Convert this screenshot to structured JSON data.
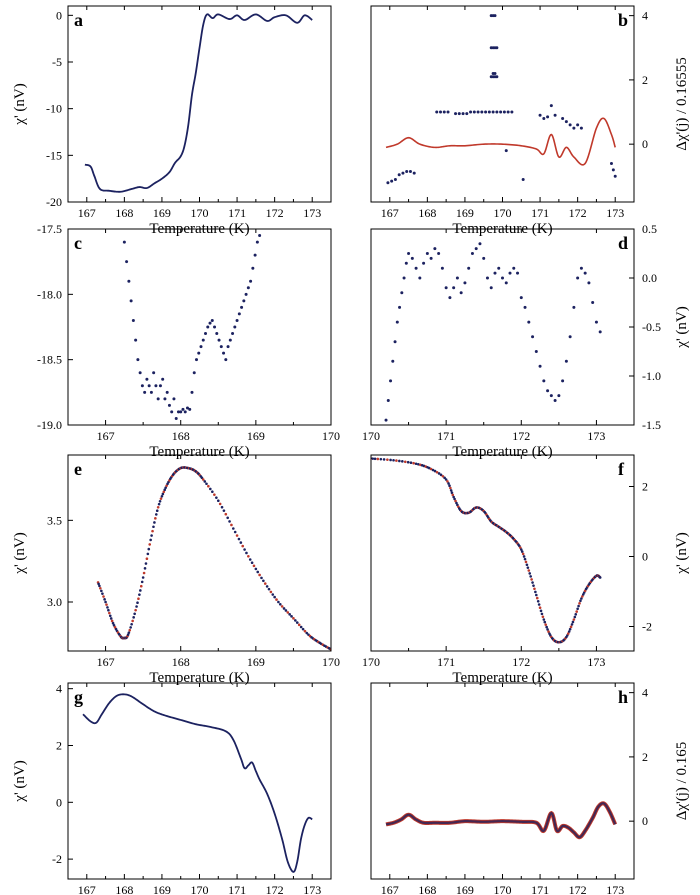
{
  "colors": {
    "navy": "#1c2260",
    "red": "#c0392b",
    "axis": "#000000"
  },
  "chart_data": [
    {
      "panel": "a",
      "type": "line",
      "xlabel": "Temperature (K)",
      "ylabel": "χ'  (nV)",
      "xlim": [
        166.5,
        173.5
      ],
      "ylim": [
        -20,
        1
      ],
      "xticks": [
        "167",
        "168",
        "169",
        "170",
        "171",
        "172",
        "173"
      ],
      "xtick_values": [
        167,
        168,
        169,
        170,
        171,
        172,
        173
      ],
      "yticks": [
        "0",
        "-5",
        "-10",
        "-15",
        "-20"
      ],
      "ytick_values": [
        0,
        -5,
        -10,
        -15,
        -20
      ],
      "y_axis_side": "left",
      "series": [
        {
          "style": "line",
          "color": "navy",
          "x": [
            166.95,
            167.1,
            167.2,
            167.35,
            167.6,
            167.9,
            168.2,
            168.4,
            168.6,
            168.8,
            169.0,
            169.2,
            169.35,
            169.5,
            169.6,
            169.7,
            169.8,
            169.9,
            170.0,
            170.1,
            170.2,
            170.35,
            170.5,
            170.8,
            171.0,
            171.2,
            171.5,
            171.8,
            172.0,
            172.3,
            172.6,
            172.8,
            173.0
          ],
          "y": [
            -16.0,
            -16.2,
            -17.2,
            -18.6,
            -18.8,
            -18.9,
            -18.6,
            -18.4,
            -18.5,
            -18.0,
            -17.5,
            -16.8,
            -15.8,
            -15.1,
            -14.0,
            -11.8,
            -8.5,
            -6.2,
            -3.5,
            -1.0,
            0.1,
            -0.3,
            0.1,
            -0.4,
            0.0,
            -0.5,
            0.1,
            -0.6,
            -0.2,
            0.0,
            -0.8,
            0.0,
            -0.5
          ]
        }
      ]
    },
    {
      "panel": "b",
      "type": "scatter",
      "xlabel": "Temperature (K)",
      "ylabel": "Δχ'(j)  / 0.16555",
      "xlim": [
        166.5,
        173.5
      ],
      "ylim": [
        -1.8,
        4.3
      ],
      "xticks": [
        "167",
        "168",
        "169",
        "170",
        "171",
        "172",
        "173"
      ],
      "xtick_values": [
        167,
        168,
        169,
        170,
        171,
        172,
        173
      ],
      "yticks": [
        "4",
        "2",
        "0"
      ],
      "ytick_values": [
        4,
        2,
        0
      ],
      "y_axis_side": "right",
      "series": [
        {
          "style": "line",
          "color": "red",
          "x": [
            166.9,
            167.2,
            167.5,
            167.8,
            168.2,
            168.6,
            169.0,
            169.5,
            170.0,
            170.5,
            170.9,
            171.1,
            171.3,
            171.5,
            171.7,
            171.9,
            172.2,
            172.5,
            172.7,
            172.9,
            173.0
          ],
          "y": [
            -0.1,
            0.0,
            0.2,
            0.0,
            -0.1,
            -0.05,
            -0.05,
            0.0,
            0.0,
            -0.05,
            -0.15,
            -0.3,
            0.3,
            -0.4,
            -0.1,
            -0.4,
            -0.6,
            0.5,
            0.8,
            0.3,
            -0.1
          ]
        },
        {
          "style": "dots",
          "color": "navy",
          "x": [
            166.95,
            167.05,
            167.15,
            167.25,
            167.35,
            167.45,
            167.55,
            167.65,
            168.25,
            168.35,
            168.45,
            168.55,
            168.75,
            168.85,
            168.95,
            169.05,
            169.15,
            169.25,
            169.35,
            169.45,
            169.55,
            169.65,
            169.75,
            169.85,
            169.95,
            170.05,
            170.15,
            170.25,
            169.7,
            169.75,
            169.8,
            169.7,
            169.75,
            169.8,
            169.85,
            169.75,
            169.8,
            169.7,
            169.75,
            169.8,
            169.85,
            171.0,
            171.1,
            171.2,
            171.3,
            171.4,
            171.6,
            171.7,
            171.8,
            171.9,
            172.0,
            172.1,
            172.9,
            172.95,
            173.0,
            170.1,
            170.55
          ],
          "y": [
            -1.2,
            -1.15,
            -1.1,
            -0.95,
            -0.9,
            -0.85,
            -0.85,
            -0.9,
            1.0,
            1.0,
            1.0,
            1.0,
            0.95,
            0.95,
            0.95,
            0.95,
            1.0,
            1.0,
            1.0,
            1.0,
            1.0,
            1.0,
            1.0,
            1.0,
            1.0,
            1.0,
            1.0,
            1.0,
            4.0,
            4.0,
            4.0,
            3.0,
            3.0,
            3.0,
            3.0,
            2.2,
            2.2,
            2.1,
            2.1,
            2.1,
            2.1,
            0.9,
            0.8,
            0.85,
            1.2,
            0.9,
            0.8,
            0.7,
            0.6,
            0.5,
            0.6,
            0.5,
            -0.6,
            -0.8,
            -1.0,
            -0.2,
            -1.1
          ]
        }
      ]
    },
    {
      "panel": "c",
      "type": "scatter",
      "xlabel": "Temperature (K)",
      "ylabel": "",
      "xlim": [
        166.5,
        170
      ],
      "ylim": [
        -19.0,
        -17.5
      ],
      "xticks": [
        "167",
        "168",
        "169",
        "170"
      ],
      "xtick_values": [
        167,
        168,
        169,
        170
      ],
      "yticks": [
        "-17.5",
        "-18.0",
        "-18.5",
        "-19.0"
      ],
      "ytick_values": [
        -17.5,
        -18.0,
        -18.5,
        -19.0
      ],
      "y_axis_side": "left",
      "series": [
        {
          "style": "dots",
          "color": "navy",
          "x": [
            167.25,
            167.28,
            167.31,
            167.34,
            167.37,
            167.4,
            167.43,
            167.46,
            167.49,
            167.52,
            167.55,
            167.58,
            167.61,
            167.64,
            167.67,
            167.7,
            167.73,
            167.76,
            167.79,
            167.82,
            167.85,
            167.88,
            167.91,
            167.94,
            167.97,
            168.0,
            168.03,
            168.06,
            168.09,
            168.12,
            168.15,
            168.18,
            168.21,
            168.24,
            168.27,
            168.3,
            168.33,
            168.36,
            168.39,
            168.42,
            168.45,
            168.48,
            168.51,
            168.54,
            168.57,
            168.6,
            168.63,
            168.66,
            168.69,
            168.72,
            168.75,
            168.78,
            168.81,
            168.84,
            168.87,
            168.9,
            168.93,
            168.96,
            168.99,
            169.02,
            169.05
          ],
          "y": [
            -17.6,
            -17.75,
            -17.9,
            -18.05,
            -18.2,
            -18.35,
            -18.5,
            -18.6,
            -18.7,
            -18.75,
            -18.65,
            -18.7,
            -18.75,
            -18.6,
            -18.7,
            -18.8,
            -18.7,
            -18.65,
            -18.8,
            -18.75,
            -18.85,
            -18.9,
            -18.8,
            -18.95,
            -18.9,
            -18.9,
            -18.88,
            -18.9,
            -18.87,
            -18.88,
            -18.75,
            -18.6,
            -18.5,
            -18.45,
            -18.4,
            -18.35,
            -18.3,
            -18.25,
            -18.22,
            -18.2,
            -18.25,
            -18.3,
            -18.35,
            -18.4,
            -18.45,
            -18.5,
            -18.4,
            -18.35,
            -18.3,
            -18.25,
            -18.2,
            -18.15,
            -18.1,
            -18.05,
            -18.0,
            -17.95,
            -17.9,
            -17.8,
            -17.7,
            -17.6,
            -17.55
          ]
        }
      ]
    },
    {
      "panel": "d",
      "type": "scatter",
      "xlabel": "Temperature (K)",
      "ylabel": "χ'  (nV)",
      "xlim": [
        170,
        173.5
      ],
      "ylim": [
        -1.5,
        0.5
      ],
      "xticks": [
        "170",
        "171",
        "172",
        "173"
      ],
      "xtick_values": [
        170,
        171,
        172,
        173
      ],
      "yticks": [
        "0.5",
        "0.0",
        "-0.5",
        "-1.0",
        "-1.5"
      ],
      "ytick_values": [
        0.5,
        0.0,
        -0.5,
        -1.0,
        -1.5
      ],
      "y_axis_side": "right",
      "series": [
        {
          "style": "dots",
          "color": "navy",
          "x": [
            170.2,
            170.23,
            170.26,
            170.29,
            170.32,
            170.35,
            170.38,
            170.41,
            170.44,
            170.47,
            170.5,
            170.55,
            170.6,
            170.65,
            170.7,
            170.75,
            170.8,
            170.85,
            170.9,
            170.95,
            171.0,
            171.05,
            171.1,
            171.15,
            171.2,
            171.25,
            171.3,
            171.35,
            171.4,
            171.45,
            171.5,
            171.55,
            171.6,
            171.65,
            171.7,
            171.75,
            171.8,
            171.85,
            171.9,
            171.95,
            172.0,
            172.05,
            172.1,
            172.15,
            172.2,
            172.25,
            172.3,
            172.35,
            172.4,
            172.45,
            172.5,
            172.55,
            172.6,
            172.65,
            172.7,
            172.75,
            172.8,
            172.85,
            172.9,
            172.95,
            173.0,
            173.05
          ],
          "y": [
            -1.45,
            -1.25,
            -1.05,
            -0.85,
            -0.65,
            -0.45,
            -0.3,
            -0.15,
            0.0,
            0.15,
            0.25,
            0.2,
            0.1,
            0.0,
            0.15,
            0.25,
            0.2,
            0.3,
            0.25,
            0.1,
            -0.1,
            -0.2,
            -0.1,
            0.0,
            -0.15,
            -0.05,
            0.1,
            0.25,
            0.3,
            0.35,
            0.2,
            0.0,
            -0.1,
            0.05,
            0.1,
            0.0,
            -0.05,
            0.05,
            0.1,
            0.05,
            -0.2,
            -0.3,
            -0.45,
            -0.6,
            -0.75,
            -0.9,
            -1.05,
            -1.15,
            -1.2,
            -1.25,
            -1.2,
            -1.05,
            -0.85,
            -0.6,
            -0.3,
            0.0,
            0.1,
            0.05,
            -0.05,
            -0.25,
            -0.45,
            -0.55
          ]
        }
      ]
    },
    {
      "panel": "e",
      "type": "line",
      "xlabel": "Temperature (K)",
      "ylabel": "χ'  (nV)",
      "xlim": [
        166.5,
        170
      ],
      "ylim": [
        2.7,
        3.9
      ],
      "xticks": [
        "167",
        "168",
        "169",
        "170"
      ],
      "xtick_values": [
        167,
        168,
        169,
        170
      ],
      "yticks": [
        "3.5",
        "3.0"
      ],
      "ytick_values": [
        3.5,
        3.0
      ],
      "y_axis_side": "left",
      "series": [
        {
          "style": "dotted-line",
          "color": "navy",
          "alt_color": "red",
          "x": [
            166.9,
            167.0,
            167.1,
            167.2,
            167.25,
            167.3,
            167.4,
            167.5,
            167.6,
            167.7,
            167.8,
            167.9,
            168.0,
            168.1,
            168.2,
            168.3,
            168.5,
            168.7,
            168.9,
            169.1,
            169.3,
            169.5,
            169.7,
            169.85,
            170.0
          ],
          "y": [
            3.12,
            3.0,
            2.87,
            2.79,
            2.78,
            2.8,
            2.95,
            3.15,
            3.38,
            3.58,
            3.7,
            3.78,
            3.82,
            3.82,
            3.8,
            3.75,
            3.62,
            3.45,
            3.28,
            3.13,
            3.0,
            2.9,
            2.8,
            2.75,
            2.71
          ]
        }
      ]
    },
    {
      "panel": "f",
      "type": "line",
      "xlabel": "Temperature (K)",
      "ylabel": "χ'  (nV)",
      "xlim": [
        170,
        173.5
      ],
      "ylim": [
        -2.7,
        2.9
      ],
      "xticks": [
        "170",
        "171",
        "172",
        "173"
      ],
      "xtick_values": [
        170,
        171,
        172,
        173
      ],
      "yticks": [
        "2",
        "0",
        "-2"
      ],
      "ytick_values": [
        2,
        0,
        -2
      ],
      "y_axis_side": "right",
      "series": [
        {
          "style": "dotted-line",
          "color": "navy",
          "alt_color": "red",
          "x": [
            170.0,
            170.3,
            170.6,
            170.8,
            171.0,
            171.1,
            171.2,
            171.3,
            171.4,
            171.5,
            171.6,
            171.7,
            171.8,
            171.9,
            172.0,
            172.1,
            172.2,
            172.3,
            172.4,
            172.5,
            172.6,
            172.7,
            172.8,
            172.9,
            173.0,
            173.05
          ],
          "y": [
            2.8,
            2.75,
            2.65,
            2.5,
            2.2,
            1.7,
            1.3,
            1.25,
            1.4,
            1.3,
            1.0,
            0.85,
            0.7,
            0.5,
            0.2,
            -0.4,
            -1.1,
            -1.8,
            -2.3,
            -2.45,
            -2.3,
            -1.8,
            -1.2,
            -0.8,
            -0.55,
            -0.6
          ]
        }
      ]
    },
    {
      "panel": "g",
      "type": "line",
      "xlabel": "Temperature (K)",
      "ylabel": "χ'  (nV)",
      "xlim": [
        166.5,
        173.5
      ],
      "ylim": [
        -2.7,
        4.2
      ],
      "xticks": [
        "167",
        "168",
        "169",
        "170",
        "171",
        "172",
        "173"
      ],
      "xtick_values": [
        167,
        168,
        169,
        170,
        171,
        172,
        173
      ],
      "yticks": [
        "4",
        "2",
        "0",
        "-2"
      ],
      "ytick_values": [
        4,
        2,
        0,
        -2
      ],
      "y_axis_side": "left",
      "series": [
        {
          "style": "line",
          "color": "navy",
          "x": [
            166.9,
            167.1,
            167.25,
            167.4,
            167.6,
            167.8,
            168.0,
            168.2,
            168.5,
            168.8,
            169.1,
            169.5,
            169.9,
            170.3,
            170.7,
            170.9,
            171.1,
            171.2,
            171.3,
            171.4,
            171.5,
            171.6,
            171.8,
            172.0,
            172.2,
            172.35,
            172.5,
            172.6,
            172.7,
            172.8,
            172.9,
            173.0
          ],
          "y": [
            3.1,
            2.85,
            2.8,
            3.1,
            3.5,
            3.75,
            3.8,
            3.72,
            3.45,
            3.2,
            3.05,
            2.9,
            2.75,
            2.65,
            2.5,
            2.2,
            1.55,
            1.2,
            1.3,
            1.4,
            1.1,
            0.8,
            0.3,
            -0.4,
            -1.3,
            -2.1,
            -2.45,
            -2.1,
            -1.3,
            -0.8,
            -0.55,
            -0.6
          ]
        }
      ]
    },
    {
      "panel": "h",
      "type": "line",
      "xlabel": "Temperature (K)",
      "ylabel": "Δχ'(j)  / 0.165",
      "xlim": [
        166.5,
        173.5
      ],
      "ylim": [
        -1.8,
        4.3
      ],
      "xticks": [
        "167",
        "168",
        "169",
        "170",
        "171",
        "172",
        "173"
      ],
      "xtick_values": [
        167,
        168,
        169,
        170,
        171,
        172,
        173
      ],
      "yticks": [
        "4",
        "2",
        "0"
      ],
      "ytick_values": [
        4,
        2,
        0
      ],
      "y_axis_side": "right",
      "series": [
        {
          "style": "thick-line",
          "color": "navy",
          "alt_color": "red",
          "x": [
            166.9,
            167.1,
            167.3,
            167.5,
            167.7,
            167.9,
            168.2,
            168.6,
            169.0,
            169.5,
            170.0,
            170.5,
            170.9,
            171.1,
            171.3,
            171.45,
            171.6,
            171.75,
            171.9,
            172.05,
            172.2,
            172.4,
            172.55,
            172.7,
            172.85,
            173.0
          ],
          "y": [
            -0.1,
            -0.05,
            0.05,
            0.2,
            0.05,
            -0.05,
            -0.05,
            -0.05,
            0.0,
            -0.02,
            0.0,
            -0.02,
            -0.05,
            -0.3,
            0.25,
            -0.3,
            -0.15,
            -0.2,
            -0.35,
            -0.5,
            -0.3,
            0.1,
            0.45,
            0.55,
            0.3,
            -0.1
          ]
        }
      ]
    }
  ]
}
